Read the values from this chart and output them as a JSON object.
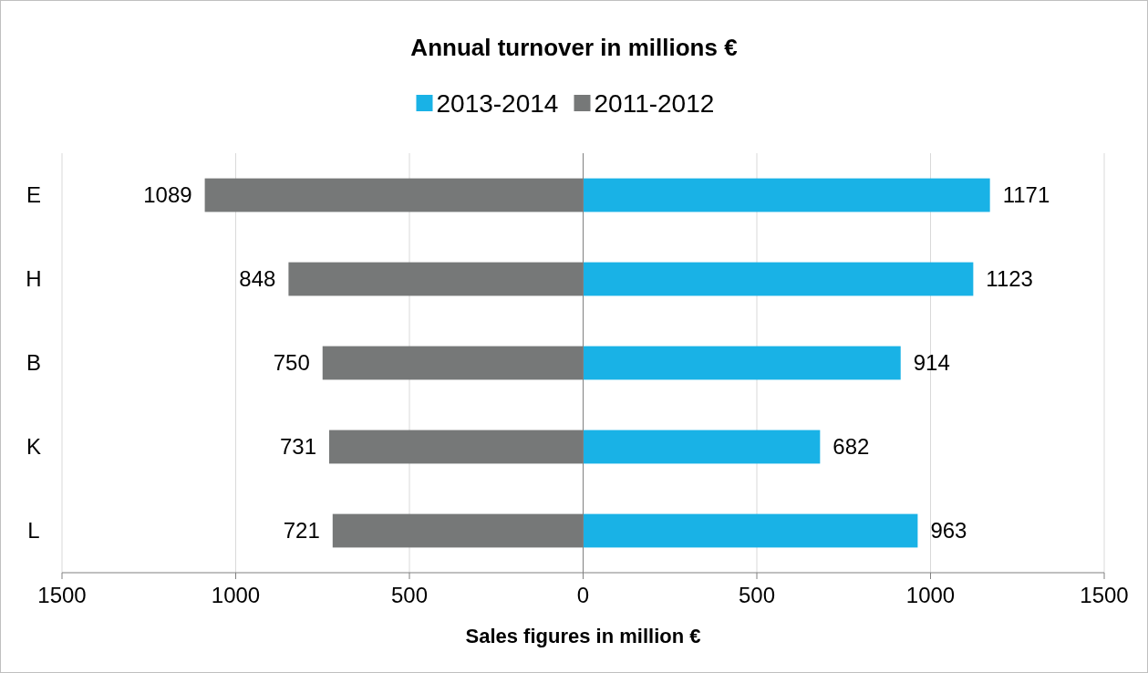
{
  "chart_data": [
    {
      "type": "bar",
      "orientation": "horizontal",
      "title": "Annual turnover in millions €",
      "xlabel": "Sales figures in million €",
      "categories": [
        "E",
        "H",
        "B",
        "K",
        "L"
      ],
      "series": [
        {
          "name": "2011-2012",
          "color": "#767878",
          "values": [
            1089,
            848,
            750,
            731,
            721
          ]
        }
      ],
      "data_labels": true,
      "xlim": [
        1500,
        0
      ],
      "xticks": [
        1500,
        1000,
        500,
        0
      ],
      "grid": "x",
      "legend": "top"
    },
    {
      "type": "bar",
      "orientation": "horizontal",
      "categories": [
        null,
        null,
        null,
        null,
        null
      ],
      "series": [
        {
          "name": "2013-2014",
          "color": "#19b2e6",
          "values": [
            1171,
            1123,
            914,
            682,
            963
          ]
        }
      ],
      "data_labels": true,
      "xlim": [
        0,
        1500
      ],
      "xticks": [
        500,
        1000,
        1500
      ],
      "grid": "x",
      "legend": "top",
      "tick_labels": "x"
    }
  ]
}
